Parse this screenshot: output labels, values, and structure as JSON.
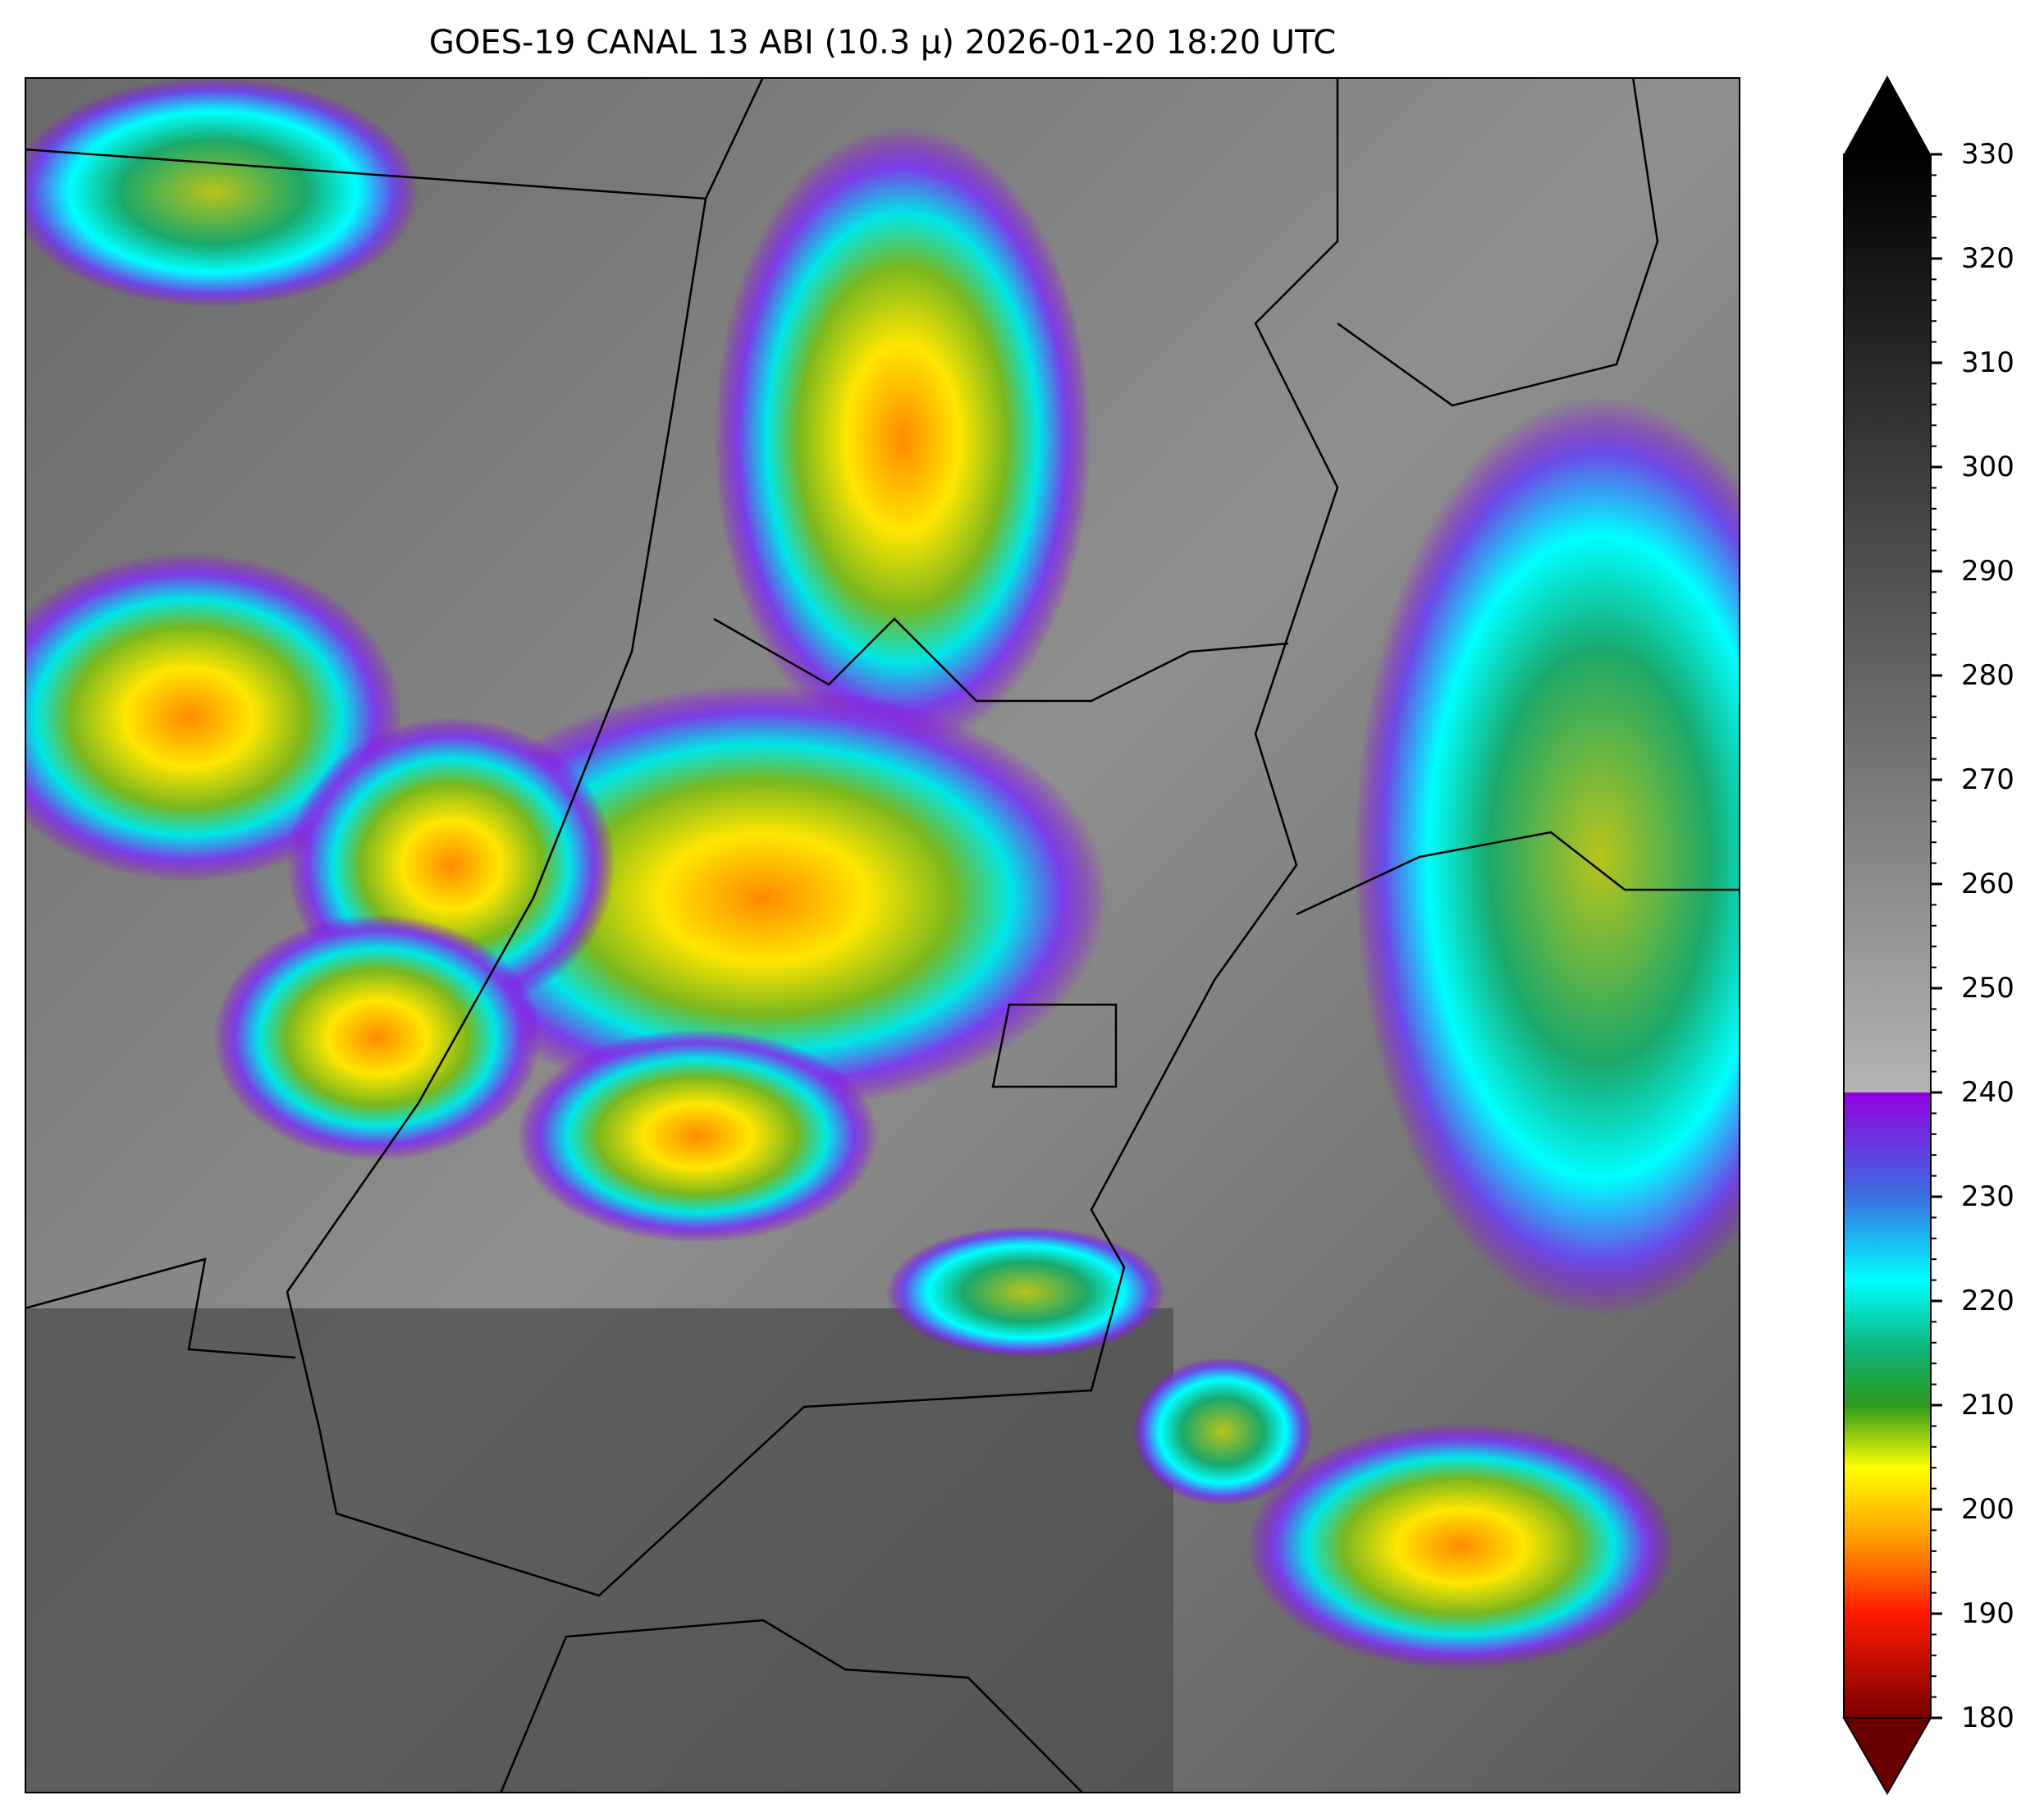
{
  "chart_data": {
    "type": "heatmap",
    "title": "GOES-19 CANAL 13 ABI (10.3 μ) 2026-01-20 18:20 UTC",
    "colorbar": {
      "range": [
        180,
        330
      ],
      "ticks": [
        "180",
        "190",
        "200",
        "210",
        "220",
        "230",
        "240",
        "250",
        "260",
        "270",
        "280",
        "290",
        "300",
        "310",
        "320",
        "330"
      ],
      "extend": "both",
      "stops": [
        {
          "value": 180,
          "color": "#7a0000"
        },
        {
          "value": 190,
          "color": "#ff1a00"
        },
        {
          "value": 197,
          "color": "#ff9900"
        },
        {
          "value": 204,
          "color": "#ffff00"
        },
        {
          "value": 210,
          "color": "#2e9a1e"
        },
        {
          "value": 215,
          "color": "#0fb070"
        },
        {
          "value": 222,
          "color": "#00ffff"
        },
        {
          "value": 230,
          "color": "#3a6fe0"
        },
        {
          "value": 240,
          "color": "#9400e0"
        },
        {
          "value": 240.01,
          "color": "#b4b4b4"
        },
        {
          "value": 330,
          "color": "#000000"
        }
      ]
    }
  }
}
